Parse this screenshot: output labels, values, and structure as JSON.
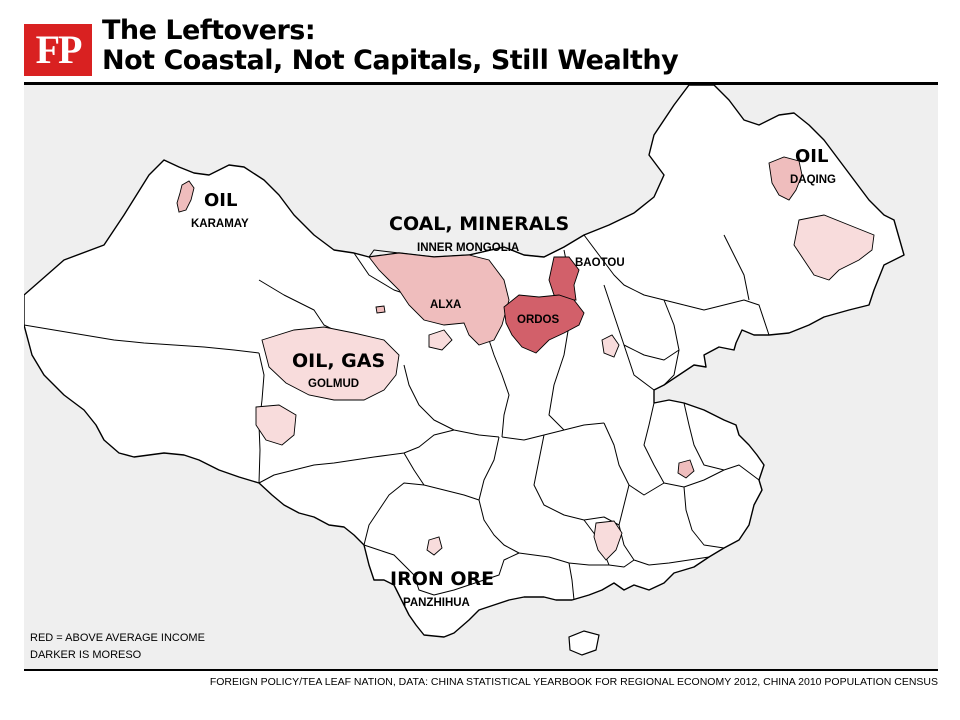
{
  "header": {
    "logo": "FP",
    "title_line1": "The Leftovers:",
    "title_line2": "Not Coastal, Not Capitals, Still Wealthy"
  },
  "map": {
    "labels": [
      {
        "resource": "OIL",
        "place": "KARAMAY"
      },
      {
        "resource": "COAL, MINERALS",
        "place": "INNER MONGOLIA"
      },
      {
        "resource": "OIL",
        "place": "DAQING"
      },
      {
        "resource": "OIL, GAS",
        "place": "GOLMUD"
      },
      {
        "resource": "IRON ORE",
        "place": "PANZHIHUA"
      }
    ],
    "city_labels": [
      "ALXA",
      "BAOTOU",
      "ORDOS"
    ],
    "legend": {
      "line1": "RED = ABOVE AVERAGE INCOME",
      "line2": "DARKER IS MORESO"
    },
    "colors": {
      "dark": "#d2606a",
      "medium": "#efbdbd",
      "light": "#f8dcdc",
      "land": "#ffffff",
      "background": "#efefef",
      "border": "#000000"
    }
  },
  "source": "FOREIGN POLICY/TEA LEAF NATION, DATA: CHINA STATISTICAL YEARBOOK FOR REGIONAL ECONOMY 2012, CHINA 2010 POPULATION CENSUS"
}
